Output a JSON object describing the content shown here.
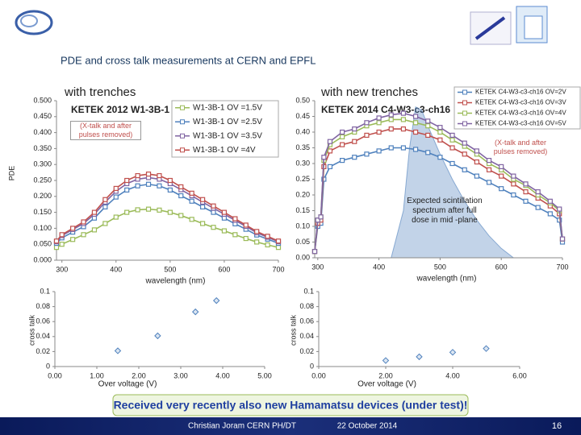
{
  "slide": {
    "title": "PDE and cross talk measurements at CERN and EPFL",
    "banner": "Received very recently also new Hamamatsu devices (under test)!",
    "author": "Christian Joram  CERN  PH/DT",
    "date": "22 October 2014",
    "page_number": "16"
  },
  "chart_data": [
    {
      "type": "line",
      "title": "with trenches",
      "ylabel": "PDE",
      "xlabel": "wavelength (nm)",
      "annotations": [
        "KETEK 2012 W1-3B-1",
        "(X-talk and after pulses removed)"
      ],
      "x": [
        290,
        300,
        320,
        340,
        360,
        380,
        400,
        420,
        440,
        460,
        480,
        500,
        520,
        540,
        560,
        580,
        600,
        620,
        640,
        660,
        680,
        700
      ],
      "xlim": [
        290,
        700
      ],
      "xticks": [
        300,
        400,
        500,
        600,
        700
      ],
      "ylim": [
        0,
        0.5
      ],
      "yticks": [
        {
          "value": 0,
          "label": "0.000"
        },
        {
          "value": 0.05,
          "label": "0.050"
        },
        {
          "value": 0.1,
          "label": "0.100"
        },
        {
          "value": 0.15,
          "label": "0.150"
        },
        {
          "value": 0.2,
          "label": "0.200"
        },
        {
          "value": 0.25,
          "label": "0.250"
        },
        {
          "value": 0.3,
          "label": "0.300"
        },
        {
          "value": 0.35,
          "label": "0.350"
        },
        {
          "value": 0.4,
          "label": "0.400"
        },
        {
          "value": 0.45,
          "label": "0.450"
        },
        {
          "value": 0.5,
          "label": "0.500"
        }
      ],
      "legend": "upper right",
      "series": [
        {
          "name": "W1-3B-1 OV =1.5V",
          "color": "#9bbb59",
          "values": [
            0.04,
            0.05,
            0.065,
            0.08,
            0.095,
            0.115,
            0.135,
            0.15,
            0.158,
            0.16,
            0.157,
            0.15,
            0.14,
            0.128,
            0.115,
            0.103,
            0.092,
            0.08,
            0.068,
            0.057,
            0.048,
            0.04
          ]
        },
        {
          "name": "W1-3B-1 OV =2.5V",
          "color": "#4f81bd",
          "values": [
            0.053,
            0.07,
            0.088,
            0.105,
            0.132,
            0.167,
            0.198,
            0.22,
            0.233,
            0.238,
            0.233,
            0.22,
            0.202,
            0.185,
            0.167,
            0.15,
            0.132,
            0.114,
            0.097,
            0.079,
            0.066,
            0.053
          ]
        },
        {
          "name": "W1-3B-1 OV =3.5V",
          "color": "#8064a2",
          "values": [
            0.058,
            0.077,
            0.096,
            0.115,
            0.144,
            0.182,
            0.216,
            0.24,
            0.254,
            0.259,
            0.254,
            0.24,
            0.221,
            0.202,
            0.182,
            0.163,
            0.144,
            0.125,
            0.106,
            0.086,
            0.072,
            0.058
          ]
        },
        {
          "name": "W1-3B-1 OV =4V",
          "color": "#c0504d",
          "values": [
            0.06,
            0.08,
            0.1,
            0.12,
            0.15,
            0.19,
            0.225,
            0.25,
            0.265,
            0.27,
            0.265,
            0.25,
            0.23,
            0.21,
            0.19,
            0.17,
            0.15,
            0.13,
            0.11,
            0.09,
            0.075,
            0.06
          ]
        }
      ]
    },
    {
      "type": "line",
      "title": "with new trenches",
      "xlabel": "wavelength (nm)",
      "annotations": [
        "KETEK 2014  C4-W3-c3-ch16",
        "(X-talk and after pulses removed)",
        "Expected scintillation spectrum after full dose in mid -plane"
      ],
      "x": [
        295,
        300,
        305,
        310,
        320,
        340,
        360,
        380,
        400,
        420,
        440,
        460,
        480,
        500,
        520,
        540,
        560,
        580,
        600,
        620,
        640,
        660,
        680,
        695,
        700
      ],
      "xlim": [
        295,
        700
      ],
      "xticks": [
        300,
        400,
        500,
        600,
        700
      ],
      "ylim": [
        0,
        0.5
      ],
      "yticks": [
        {
          "value": 0,
          "label": "0.00"
        },
        {
          "value": 0.05,
          "label": "0.05"
        },
        {
          "value": 0.1,
          "label": "0.10"
        },
        {
          "value": 0.15,
          "label": "0.15"
        },
        {
          "value": 0.2,
          "label": "0.20"
        },
        {
          "value": 0.25,
          "label": "0.25"
        },
        {
          "value": 0.3,
          "label": "0.30"
        },
        {
          "value": 0.35,
          "label": "0.35"
        },
        {
          "value": 0.4,
          "label": "0.40"
        },
        {
          "value": 0.45,
          "label": "0.45"
        },
        {
          "value": 0.5,
          "label": "0.50"
        }
      ],
      "legend": "top right",
      "area": {
        "color": "#4f81bd",
        "x": [
          420,
          440,
          450,
          460,
          470,
          480,
          500,
          520,
          540,
          560,
          580,
          600,
          620
        ],
        "values": [
          0,
          0.15,
          0.35,
          0.48,
          0.47,
          0.42,
          0.33,
          0.25,
          0.18,
          0.12,
          0.07,
          0.03,
          0
        ]
      },
      "series": [
        {
          "name": "KETEK C4-W3-c3-ch16 OV=2V",
          "color": "#4f81bd",
          "values": [
            0.02,
            0.1,
            0.11,
            0.25,
            0.29,
            0.31,
            0.32,
            0.33,
            0.34,
            0.35,
            0.35,
            0.345,
            0.335,
            0.32,
            0.3,
            0.28,
            0.26,
            0.24,
            0.22,
            0.2,
            0.18,
            0.16,
            0.14,
            0.12,
            0.05
          ]
        },
        {
          "name": "KETEK C4-W3-c3-ch16 OV=3V",
          "color": "#c0504d",
          "values": [
            0.02,
            0.11,
            0.12,
            0.29,
            0.34,
            0.36,
            0.37,
            0.39,
            0.4,
            0.41,
            0.41,
            0.4,
            0.39,
            0.375,
            0.35,
            0.33,
            0.305,
            0.28,
            0.26,
            0.235,
            0.21,
            0.19,
            0.165,
            0.14,
            0.06
          ]
        },
        {
          "name": "KETEK C4-W3-c3-ch16 OV=4V",
          "color": "#9bbb59",
          "values": [
            0.02,
            0.12,
            0.13,
            0.31,
            0.36,
            0.385,
            0.4,
            0.42,
            0.43,
            0.44,
            0.44,
            0.43,
            0.42,
            0.4,
            0.375,
            0.355,
            0.33,
            0.3,
            0.28,
            0.25,
            0.23,
            0.2,
            0.175,
            0.15,
            0.06
          ]
        },
        {
          "name": "KETEK C4-W3-c3-ch16 OV=5V",
          "color": "#8064a2",
          "values": [
            0.02,
            0.12,
            0.13,
            0.32,
            0.37,
            0.4,
            0.41,
            0.43,
            0.445,
            0.455,
            0.46,
            0.45,
            0.435,
            0.415,
            0.39,
            0.365,
            0.34,
            0.31,
            0.29,
            0.26,
            0.235,
            0.21,
            0.18,
            0.155,
            0.06
          ]
        }
      ]
    },
    {
      "type": "scatter",
      "ylabel": "cross talk",
      "xlabel": "Over voltage (V)",
      "color": "#4f81bd",
      "x": [
        1.5,
        2.45,
        3.35,
        3.85
      ],
      "y": [
        0.021,
        0.041,
        0.073,
        0.088
      ],
      "xlim": [
        0,
        5
      ],
      "xticks": [
        {
          "value": 0,
          "label": "0.00"
        },
        {
          "value": 1,
          "label": "1.00"
        },
        {
          "value": 2,
          "label": "2.00"
        },
        {
          "value": 3,
          "label": "3.00"
        },
        {
          "value": 4,
          "label": "4.00"
        },
        {
          "value": 5,
          "label": "5.00"
        }
      ],
      "ylim": [
        0,
        0.1
      ],
      "yticks": [
        0,
        0.02,
        0.04,
        0.06,
        0.08,
        0.1
      ]
    },
    {
      "type": "scatter",
      "ylabel": "cross talk",
      "xlabel": "Over voltage (V)",
      "color": "#4f81bd",
      "x": [
        2,
        3,
        4,
        5
      ],
      "y": [
        0.008,
        0.013,
        0.019,
        0.024
      ],
      "xlim": [
        0,
        6
      ],
      "xticks": [
        {
          "value": 0,
          "label": "0.00"
        },
        {
          "value": 2,
          "label": "2.00"
        },
        {
          "value": 4,
          "label": "4.00"
        },
        {
          "value": 6,
          "label": "6.00"
        }
      ],
      "ylim": [
        0,
        0.1
      ],
      "yticks": [
        0,
        0.02,
        0.04,
        0.06,
        0.08,
        0.1
      ]
    }
  ]
}
